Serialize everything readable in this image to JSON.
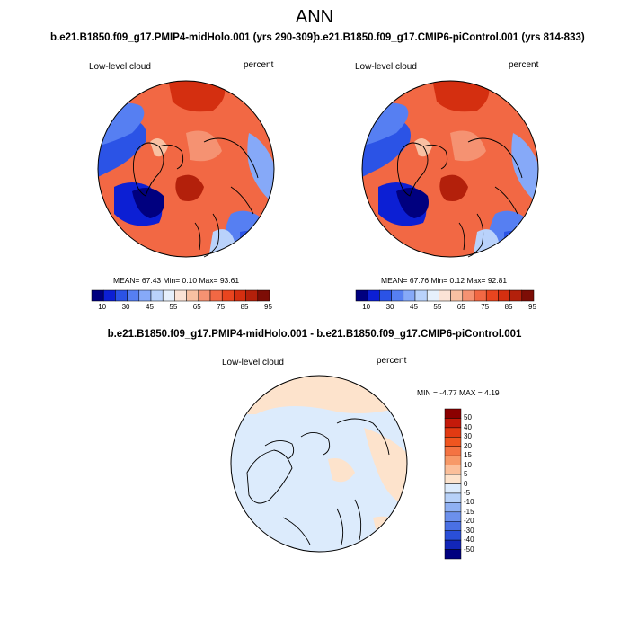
{
  "title": "ANN",
  "panels": [
    {
      "case_title": "b.e21.B1850.f09_g17.PMIP4-midHolo.001 (yrs 290-309)",
      "left_label": "Low-level cloud",
      "right_label": "percent",
      "stats": "MEAN=  67.43  Min=   0.10  Max=  93.61"
    },
    {
      "case_title": "b.e21.B1850.f09_g17.CMIP6-piControl.001 (yrs 814-833)",
      "left_label": "Low-level cloud",
      "right_label": "percent",
      "stats": "MEAN=  67.76  Min=   0.12  Max=  92.81"
    }
  ],
  "colorbar": {
    "ticks": [
      "10",
      "30",
      "45",
      "55",
      "65",
      "75",
      "85",
      "95"
    ],
    "colors": [
      "#00007f",
      "#0c1fd4",
      "#2b53e6",
      "#567ff2",
      "#86a9f8",
      "#b9d2fb",
      "#e6f0fc",
      "#fbe3d6",
      "#f8c0a2",
      "#f59272",
      "#f26844",
      "#e9451f",
      "#d42f10",
      "#b3200b",
      "#7d0d06"
    ]
  },
  "difference": {
    "title": "b.e21.B1850.f09_g17.PMIP4-midHolo.001 - b.e21.B1850.f09_g17.CMIP6-piControl.001",
    "left_label": "Low-level cloud",
    "right_label": "percent",
    "stats": "MIN = -4.77  MAX =   4.19",
    "ticks": [
      "50",
      "40",
      "30",
      "20",
      "15",
      "10",
      "5",
      "0",
      "-5",
      "-10",
      "-15",
      "-20",
      "-30",
      "-40",
      "-50"
    ],
    "colors": [
      "#8b0000",
      "#c41a0a",
      "#e23a12",
      "#f0551f",
      "#f47342",
      "#f79968",
      "#fbbf9a",
      "#fde3cc",
      "#dcebfc",
      "#b7d1f8",
      "#8fb0f2",
      "#6c90ec",
      "#4a70e4",
      "#2a4fd8",
      "#1226b8",
      "#00007f"
    ]
  }
}
